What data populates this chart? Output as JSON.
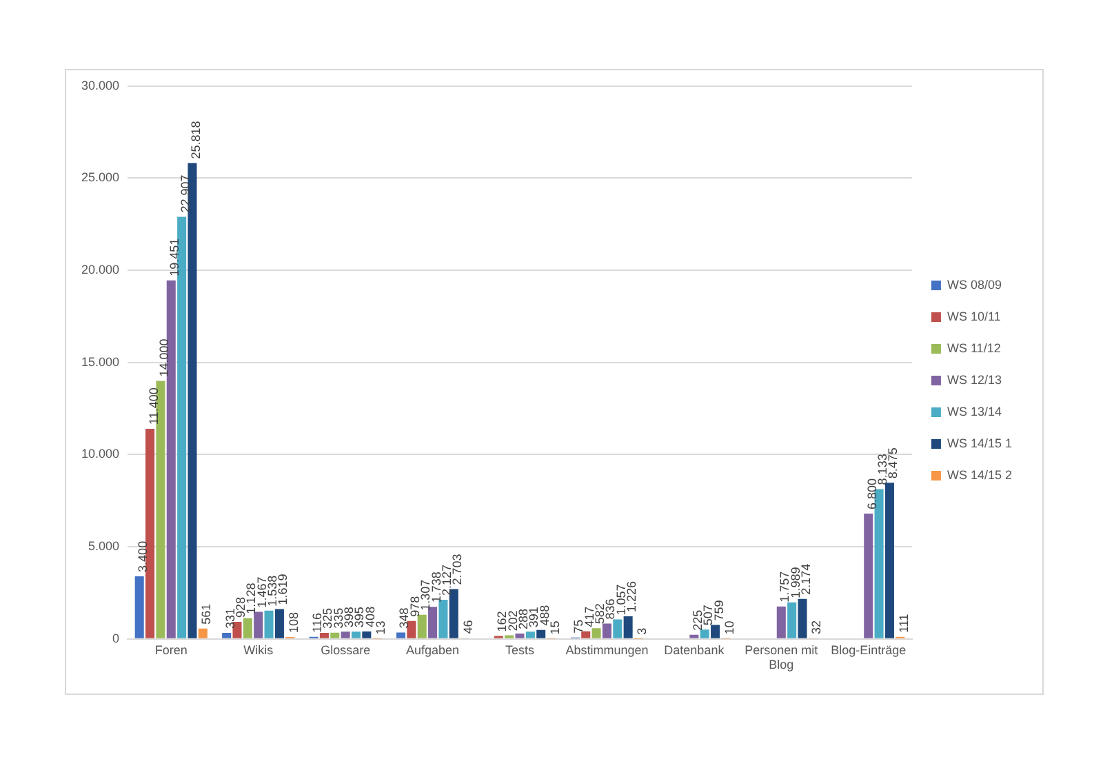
{
  "chart_data": {
    "type": "bar",
    "categories": [
      "Foren",
      "Wikis",
      "Glossare",
      "Aufgaben",
      "Tests",
      "Abstimmungen",
      "Datenbank",
      "Personen mit Blog",
      "Blog-Einträge"
    ],
    "series": [
      {
        "name": "WS 08/09",
        "color": "#4472c4",
        "values": [
          3400,
          331,
          116,
          348,
          null,
          75,
          null,
          null,
          null
        ],
        "value_labels": [
          "3.400",
          "331",
          "116",
          "348",
          null,
          "75",
          null,
          null,
          null
        ]
      },
      {
        "name": "WS 10/11",
        "color": "#c0504d",
        "values": [
          11400,
          928,
          325,
          978,
          162,
          417,
          null,
          null,
          null
        ],
        "value_labels": [
          "11.400",
          "928",
          "325",
          "978",
          "162",
          "417",
          null,
          null,
          null
        ]
      },
      {
        "name": "WS 11/12",
        "color": "#9bbb59",
        "values": [
          14000,
          1128,
          335,
          1307,
          202,
          582,
          null,
          null,
          null
        ],
        "value_labels": [
          "14.000",
          "1.128",
          "335",
          "1.307",
          "202",
          "582",
          null,
          null,
          null
        ]
      },
      {
        "name": "WS 12/13",
        "color": "#8064a2",
        "values": [
          19451,
          1467,
          398,
          1738,
          288,
          836,
          225,
          1757,
          6800
        ],
        "value_labels": [
          "19.451",
          "1.467",
          "398",
          "1.738",
          "288",
          "836",
          "225",
          "1.757",
          "6.800"
        ]
      },
      {
        "name": "WS 13/14",
        "color": "#4bacc6",
        "values": [
          22907,
          1538,
          395,
          2127,
          391,
          1057,
          507,
          1989,
          8133
        ],
        "value_labels": [
          "22.907",
          "1.538",
          "395",
          "2.127",
          "391",
          "1.057",
          "507",
          "1.989",
          "8.133"
        ]
      },
      {
        "name": "WS 14/15 1",
        "color": "#1f497d",
        "values": [
          25818,
          1619,
          408,
          2703,
          488,
          1226,
          759,
          2174,
          8475
        ],
        "value_labels": [
          "25.818",
          "1.619",
          "408",
          "2.703",
          "488",
          "1.226",
          "759",
          "2.174",
          "8.475"
        ]
      },
      {
        "name": "WS 14/15 2",
        "color": "#f79646",
        "values": [
          561,
          108,
          13,
          46,
          15,
          3,
          10,
          32,
          111
        ],
        "value_labels": [
          "561",
          "108",
          "13",
          "46",
          "15",
          "3",
          "10",
          "32",
          "111"
        ]
      }
    ],
    "ylim": [
      0,
      30000
    ],
    "yticks": [
      {
        "value": 0,
        "label": "0"
      },
      {
        "value": 5000,
        "label": "5.000"
      },
      {
        "value": 10000,
        "label": "10.000"
      },
      {
        "value": 15000,
        "label": "15.000"
      },
      {
        "value": 20000,
        "label": "20.000"
      },
      {
        "value": 25000,
        "label": "25.000"
      },
      {
        "value": 30000,
        "label": "30.000"
      }
    ],
    "grid": "y",
    "legend": "right"
  }
}
